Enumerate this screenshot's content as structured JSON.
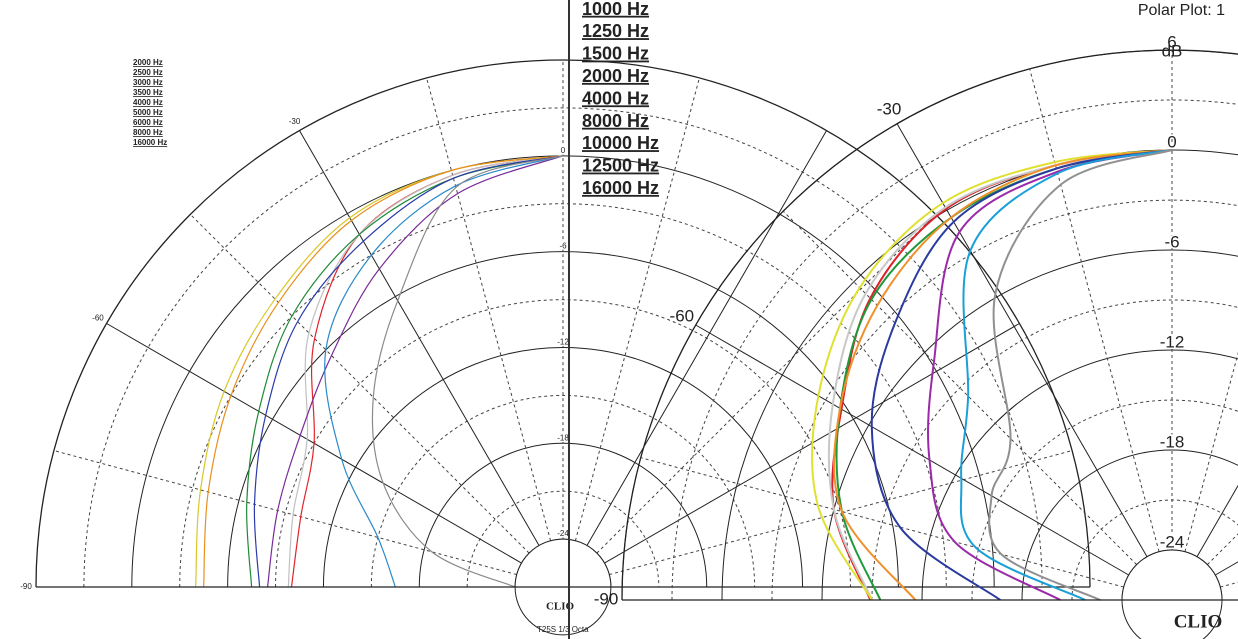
{
  "chart_data": [
    {
      "type": "polar",
      "theta": [
        0,
        -15,
        -30,
        -45,
        -60,
        -75,
        -90
      ],
      "rlim": [
        -27,
        6
      ],
      "rticks": [
        0,
        -6,
        -12,
        -18,
        -24
      ],
      "thetaticks": [
        -30,
        -60,
        -90
      ],
      "brand": "CLIO",
      "footnote": "T25S  1/3 Octa",
      "series": [
        {
          "name": "2000 Hz",
          "color": "#e0242a",
          "values": [
            0,
            -0.3,
            -1.5,
            -5,
            -9,
            -10,
            -10
          ]
        },
        {
          "name": "2500 Hz",
          "color": "#c0c0c0",
          "values": [
            0,
            -0.3,
            -1.5,
            -4.5,
            -8.5,
            -9.5,
            -9.8
          ]
        },
        {
          "name": "3000 Hz",
          "color": "#1e8a36",
          "values": [
            0,
            -0.5,
            -1.5,
            -3,
            -5,
            -6.5,
            -7.5
          ]
        },
        {
          "name": "3500 Hz",
          "color": "#d8c82a",
          "values": [
            0,
            0,
            -0.3,
            -1.5,
            -2.5,
            -3.5,
            -4
          ]
        },
        {
          "name": "4000 Hz",
          "color": "#e8901e",
          "values": [
            0,
            0,
            -0.5,
            -1.8,
            -3,
            -4,
            -4.5
          ]
        },
        {
          "name": "5000 Hz",
          "color": "#2a3aa8",
          "values": [
            0,
            -0.5,
            -2,
            -3.5,
            -5.5,
            -7,
            -8
          ]
        },
        {
          "name": "6000 Hz",
          "color": "#7a2a98",
          "values": [
            0,
            -1.5,
            -4,
            -6.5,
            -8,
            -8.5,
            -8.5
          ]
        },
        {
          "name": "8000 Hz",
          "color": "#2a8ac8",
          "values": [
            0,
            -1,
            -3,
            -6,
            -11,
            -15,
            -16.5
          ]
        },
        {
          "name": "16000 Hz",
          "color": "#8a8a8a",
          "values": [
            0,
            -1.1,
            -6.3,
            -10.2,
            -14,
            -18.5,
            -24
          ]
        }
      ]
    },
    {
      "type": "polar",
      "title": "Polar Plot: 1",
      "theta": [
        0,
        -15,
        -30,
        -45,
        -60,
        -75,
        -90
      ],
      "rlim": [
        -27,
        6
      ],
      "rticks": [
        6,
        0,
        -6,
        -12,
        -18,
        -24
      ],
      "runit": "dB",
      "thetaticks": [
        -30,
        -60,
        -90
      ],
      "brand": "CLIO",
      "series": [
        {
          "name": "1000 Hz",
          "color": "#e0202a",
          "values": [
            0,
            0,
            0.1,
            -1.4,
            -4.1,
            -6,
            -8.9
          ]
        },
        {
          "name": "1250 Hz",
          "color": "#c8c8c8",
          "values": [
            0,
            0,
            0.2,
            -1,
            -3.5,
            -6,
            -9
          ]
        },
        {
          "name": "1500 Hz",
          "color": "#1e9a3a",
          "values": [
            0,
            -0.2,
            -0.5,
            -1.5,
            -4,
            -6.5,
            -9.5
          ]
        },
        {
          "name": "2000 Hz",
          "color": "#e0e030",
          "values": [
            0,
            0.2,
            0.5,
            -0.5,
            -2.5,
            -5,
            -9
          ]
        },
        {
          "name": "4000 Hz",
          "color": "#f0902a",
          "values": [
            0,
            0,
            -0.5,
            -2,
            -4,
            -6.5,
            -11.6
          ]
        },
        {
          "name": "8000 Hz",
          "color": "#2a3aa0",
          "values": [
            0,
            -0.2,
            -0.8,
            -3.5,
            -6.2,
            -10.1,
            -16.7
          ]
        },
        {
          "name": "10000 Hz",
          "color": "#9a2aa8",
          "values": [
            0,
            -0.4,
            -1.5,
            -6.8,
            -10.2,
            -13.5,
            -20.3
          ]
        },
        {
          "name": "12500 Hz",
          "color": "#1aa0d8",
          "values": [
            0,
            -0.5,
            -2.8,
            -9.7,
            -12.4,
            -14.8,
            -21.8
          ]
        },
        {
          "name": "16000 Hz",
          "color": "#909090",
          "values": [
            0,
            -1.2,
            -5.8,
            -13.3,
            -14.5,
            -16.4,
            -22.7
          ]
        }
      ]
    }
  ]
}
